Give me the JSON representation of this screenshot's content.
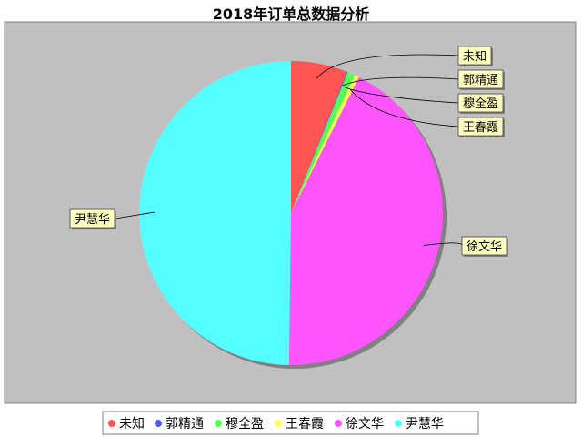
{
  "chart_data": {
    "type": "pie",
    "title": "2018年订单总数据分析",
    "slices": [
      {
        "label": "未知",
        "value": 6.0,
        "color": "#ff5555"
      },
      {
        "label": "郭精通",
        "value": 0.1,
        "color": "#5555ff"
      },
      {
        "label": "穆全盈",
        "value": 0.8,
        "color": "#55ff55"
      },
      {
        "label": "王春霞",
        "value": 0.5,
        "color": "#ffff55"
      },
      {
        "label": "徐文华",
        "value": 42.8,
        "color": "#ff55ff"
      },
      {
        "label": "尹慧华",
        "value": 49.8,
        "color": "#55ffff"
      }
    ],
    "legend_position": "bottom",
    "plot_background": "#c0c0c0",
    "label_background": "#ffffc0"
  }
}
